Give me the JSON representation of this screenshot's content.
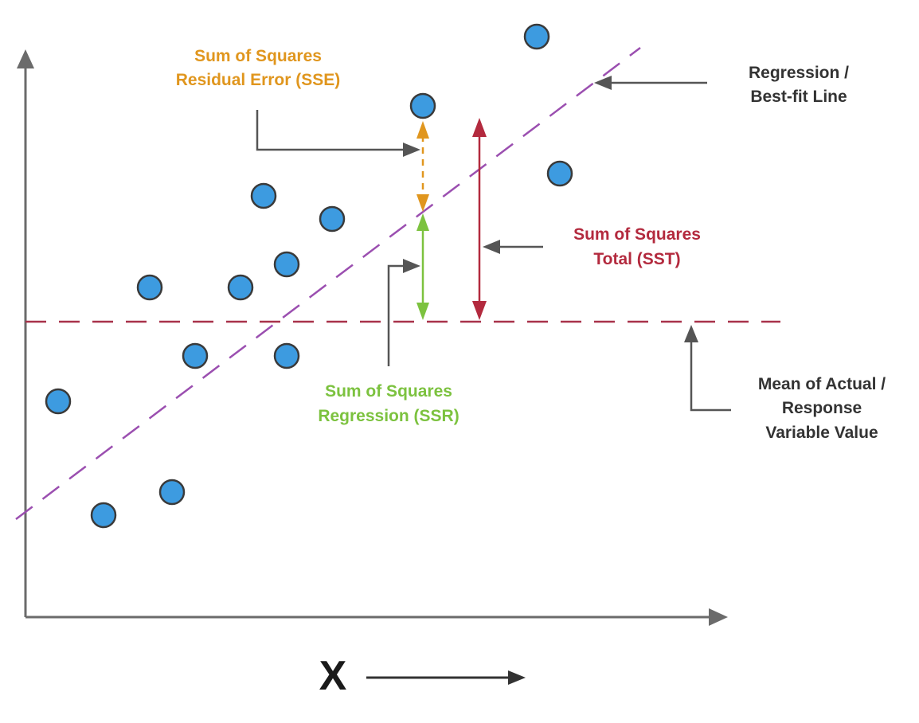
{
  "labels": {
    "sse_line1": "Sum of Squares",
    "sse_line2": "Residual Error (SSE)",
    "regression_line1": "Regression /",
    "regression_line2": "Best-fit Line",
    "sst_line1": "Sum of Squares",
    "sst_line2": "Total (SST)",
    "ssr_line1": "Sum of Squares",
    "ssr_line2": "Regression (SSR)",
    "mean_line1": "Mean of Actual /",
    "mean_line2": "Response",
    "mean_line3": "Variable Value",
    "x_axis": "X"
  },
  "colors": {
    "axis": "#6b6b6b",
    "point_fill": "#3d9be0",
    "point_stroke": "#3a3a3a",
    "regression_line": "#9b4fb0",
    "mean_line": "#a8324a",
    "sse": "#e0961e",
    "ssr": "#7cc23f",
    "sst": "#b32a3e",
    "pointer": "#555555",
    "label_dark": "#333333"
  },
  "icons": {
    "x_direction": "right-arrow-icon"
  }
}
